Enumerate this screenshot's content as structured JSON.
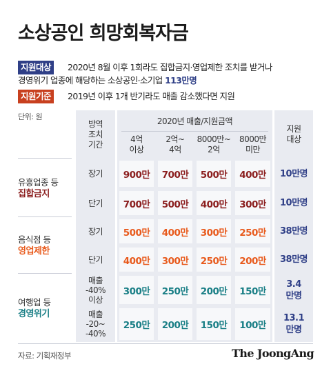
{
  "title": "소상공인 희망회복자금",
  "criteria": [
    {
      "tag": "지원대상",
      "line1": "2020년 8월 이후 1회라도 집합금지·영업제한 조치를 받거나",
      "line2_pre": "경영위기 업종에 해당하는 소상공인·소기업 ",
      "line2_hl": "113만명"
    },
    {
      "tag": "지원기준",
      "line1": "2019년 이후 1개 반기라도 매출 감소했다면 지원"
    }
  ],
  "unit": "단위: 원",
  "header": {
    "region": "방역\n조치\n기간",
    "sales_group": "2020년 매출/지원금액",
    "tiers": [
      "4억\n이상",
      "2억~\n4억",
      "8000만~\n2억",
      "8000만\n미만"
    ],
    "target": "지원\n대상"
  },
  "groups": [
    {
      "label": "유흥업종 등",
      "category": "집합금지",
      "color": "#8b1e1e",
      "rows": [
        {
          "duration": "장기",
          "amounts": [
            "900만",
            "700만",
            "500만",
            "400만"
          ],
          "target": "10만명"
        },
        {
          "duration": "단기",
          "amounts": [
            "700만",
            "500만",
            "400만",
            "300만"
          ],
          "target": "10만명"
        }
      ]
    },
    {
      "label": "음식점 등",
      "category": "영업제한",
      "color": "#e85a1c",
      "rows": [
        {
          "duration": "장기",
          "amounts": [
            "500만",
            "400만",
            "300만",
            "250만"
          ],
          "target": "38만명"
        },
        {
          "duration": "단기",
          "amounts": [
            "400만",
            "300만",
            "250만",
            "200만"
          ],
          "target": "38만명"
        }
      ]
    },
    {
      "label": "여행업 등",
      "category": "경영위기",
      "color": "#1a7f86",
      "rows": [
        {
          "duration": "매출\n-40%\n이상",
          "amounts": [
            "300만",
            "250만",
            "200만",
            "150만"
          ],
          "target": "3.4\n만명"
        },
        {
          "duration": "매출\n-20~\n-40%",
          "amounts": [
            "250만",
            "200만",
            "150만",
            "100만"
          ],
          "target": "13.1\n만명"
        }
      ]
    }
  ],
  "footer": {
    "source": "자료: 기획재정부",
    "brand": "The JoongAng"
  },
  "colors": {
    "panel_bg": "#e9ebf1",
    "cell_bg": "#f7f8fa",
    "line": "#c9ccd6"
  }
}
